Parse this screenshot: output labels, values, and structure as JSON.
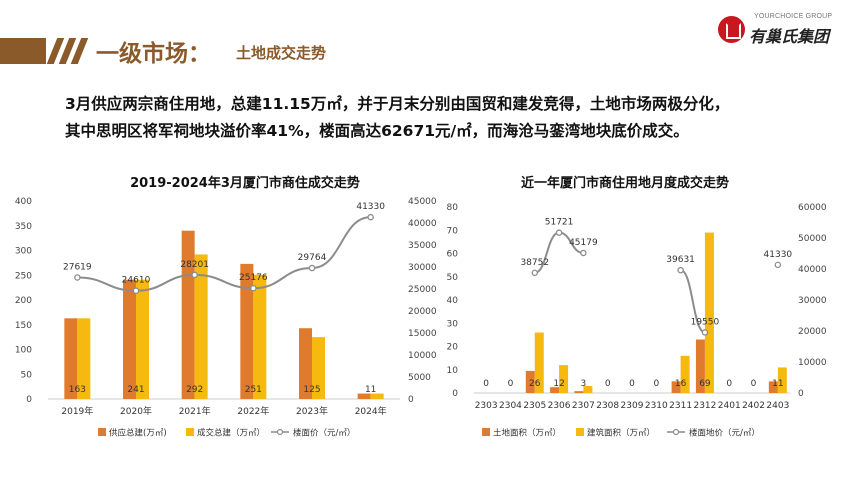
{
  "header": {
    "title": "一级市场：",
    "subtitle": "土地成交走势",
    "logo_en": "YOURCHOICE GROUP",
    "logo_cn": "有巢氏集团"
  },
  "summary": {
    "line1": "3月供应两宗商住用地，总建11.15万㎡，并于月末分别由国贸和建发竞得，土地市场两极分化，",
    "line2": "其中思明区将军祠地块溢价率41%，楼面高达62671元/㎡，而海沧马銮湾地块底价成交。"
  },
  "chart_data": [
    {
      "type": "bar",
      "title": "2019-2024年3月厦门市商住成交走势",
      "categories": [
        "2019年",
        "2020年",
        "2021年",
        "2022年",
        "2023年",
        "2024年"
      ],
      "series": [
        {
          "name": "供应总建(万㎡)",
          "type": "bar",
          "axis": "left",
          "color": "#e07b2e",
          "values": [
            163,
            241,
            340,
            273,
            143,
            11
          ]
        },
        {
          "name": "成交总建（万㎡）",
          "type": "bar",
          "axis": "left",
          "color": "#f5b90f",
          "values": [
            163,
            241,
            292,
            251,
            125,
            11
          ]
        },
        {
          "name": "楼面价（元/㎡）",
          "type": "line",
          "axis": "right",
          "color": "#8c8c8c",
          "values": [
            27619,
            24610,
            28201,
            25176,
            29764,
            41330
          ]
        }
      ],
      "bar_labels": [
        "163",
        "241",
        "292",
        "251",
        "125",
        "11"
      ],
      "line_labels": [
        "27619",
        "24610",
        "28201",
        "25176",
        "29764",
        "41330"
      ],
      "left_axis": {
        "min": 0,
        "max": 400,
        "ticks": [
          0,
          50,
          100,
          150,
          200,
          250,
          300,
          350,
          400
        ]
      },
      "right_axis": {
        "min": 0,
        "max": 45000,
        "ticks": [
          0,
          5000,
          10000,
          15000,
          20000,
          25000,
          30000,
          35000,
          40000,
          45000
        ]
      },
      "legend": "bottom"
    },
    {
      "type": "bar",
      "title": "近一年厦门市商住用地月度成交走势",
      "categories": [
        "2303",
        "2304",
        "2305",
        "2306",
        "2307",
        "2308",
        "2309",
        "2310",
        "2311",
        "2312",
        "2401",
        "2402",
        "2403"
      ],
      "series": [
        {
          "name": "土地面积（万㎡）",
          "type": "bar",
          "axis": "left",
          "color": "#e07b2e",
          "values": [
            0,
            0,
            9.5,
            2.5,
            0.8,
            0,
            0,
            0,
            5,
            23,
            0,
            0,
            5
          ]
        },
        {
          "name": "建筑面积（万㎡）",
          "type": "bar",
          "axis": "left",
          "color": "#f5b90f",
          "values": [
            0,
            0,
            26,
            12,
            3,
            0,
            0,
            0,
            16,
            69,
            0,
            0,
            11
          ]
        },
        {
          "name": "楼面地价（元/㎡）",
          "type": "line",
          "axis": "right",
          "color": "#8c8c8c",
          "values": [
            null,
            null,
            38752,
            51721,
            45179,
            null,
            null,
            null,
            39631,
            19550,
            null,
            null,
            41330
          ]
        }
      ],
      "bar_labels": [
        "0",
        "0",
        "26",
        "12",
        "3",
        "0",
        "0",
        "0",
        "16",
        "69",
        "0",
        "0",
        "11"
      ],
      "line_labels": [
        "",
        "",
        "38752",
        "51721",
        "45179",
        "",
        "",
        "",
        "39631",
        "19550",
        "",
        "",
        "41330"
      ],
      "left_axis": {
        "min": 0,
        "max": 80,
        "ticks": [
          0,
          10,
          20,
          30,
          40,
          50,
          60,
          70,
          80
        ]
      },
      "right_axis": {
        "min": 0,
        "max": 60000,
        "ticks": [
          0,
          10000,
          20000,
          30000,
          40000,
          50000,
          60000
        ]
      },
      "legend": "bottom"
    }
  ]
}
